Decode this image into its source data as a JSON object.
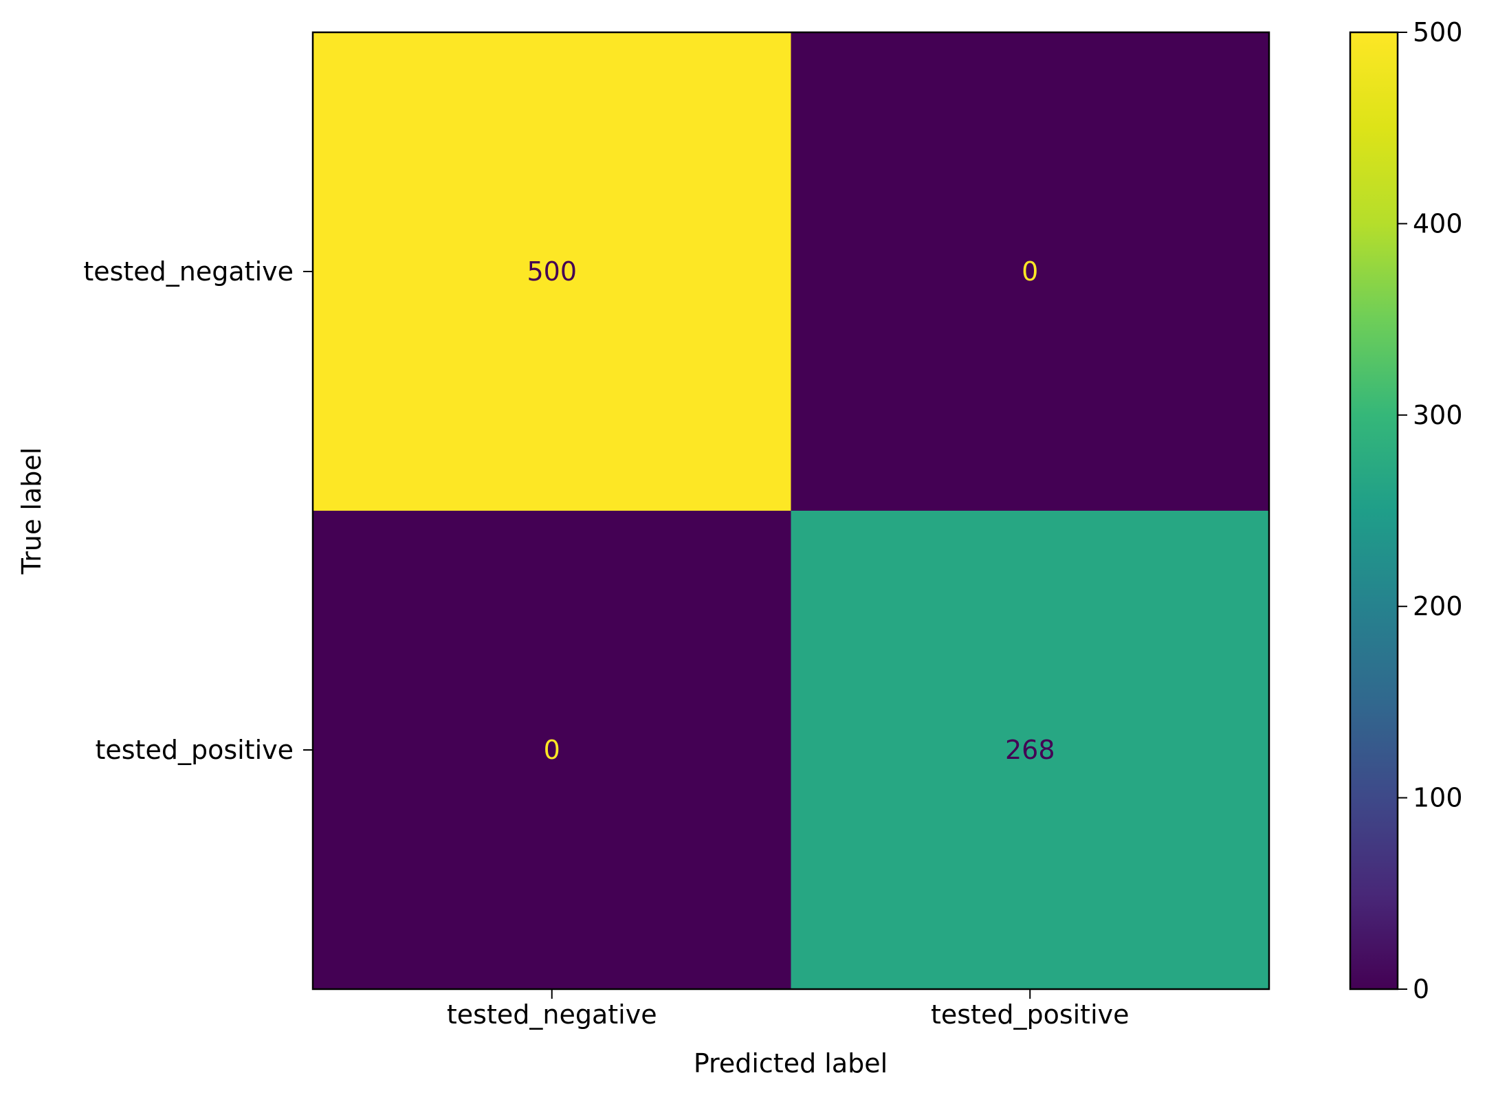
{
  "chart_data": {
    "type": "heatmap",
    "subtype": "confusion-matrix",
    "title": "",
    "xlabel": "Predicted label",
    "ylabel": "True label",
    "x_categories": [
      "tested_negative",
      "tested_positive"
    ],
    "y_categories": [
      "tested_negative",
      "tested_positive"
    ],
    "values": [
      [
        500,
        0
      ],
      [
        0,
        268
      ]
    ],
    "colormap": "viridis",
    "colorbar": {
      "min": 0,
      "max": 500,
      "ticks": [
        0,
        100,
        200,
        300,
        400,
        500
      ],
      "tick_labels": [
        "0",
        "100",
        "200",
        "300",
        "400",
        "500"
      ]
    },
    "colors": {
      "dark_cell": "#440154",
      "bright_cell": "#fde725",
      "mid_cell": "#21908d",
      "text_on_dark": "#fde725",
      "text_on_light": "#440154"
    }
  }
}
